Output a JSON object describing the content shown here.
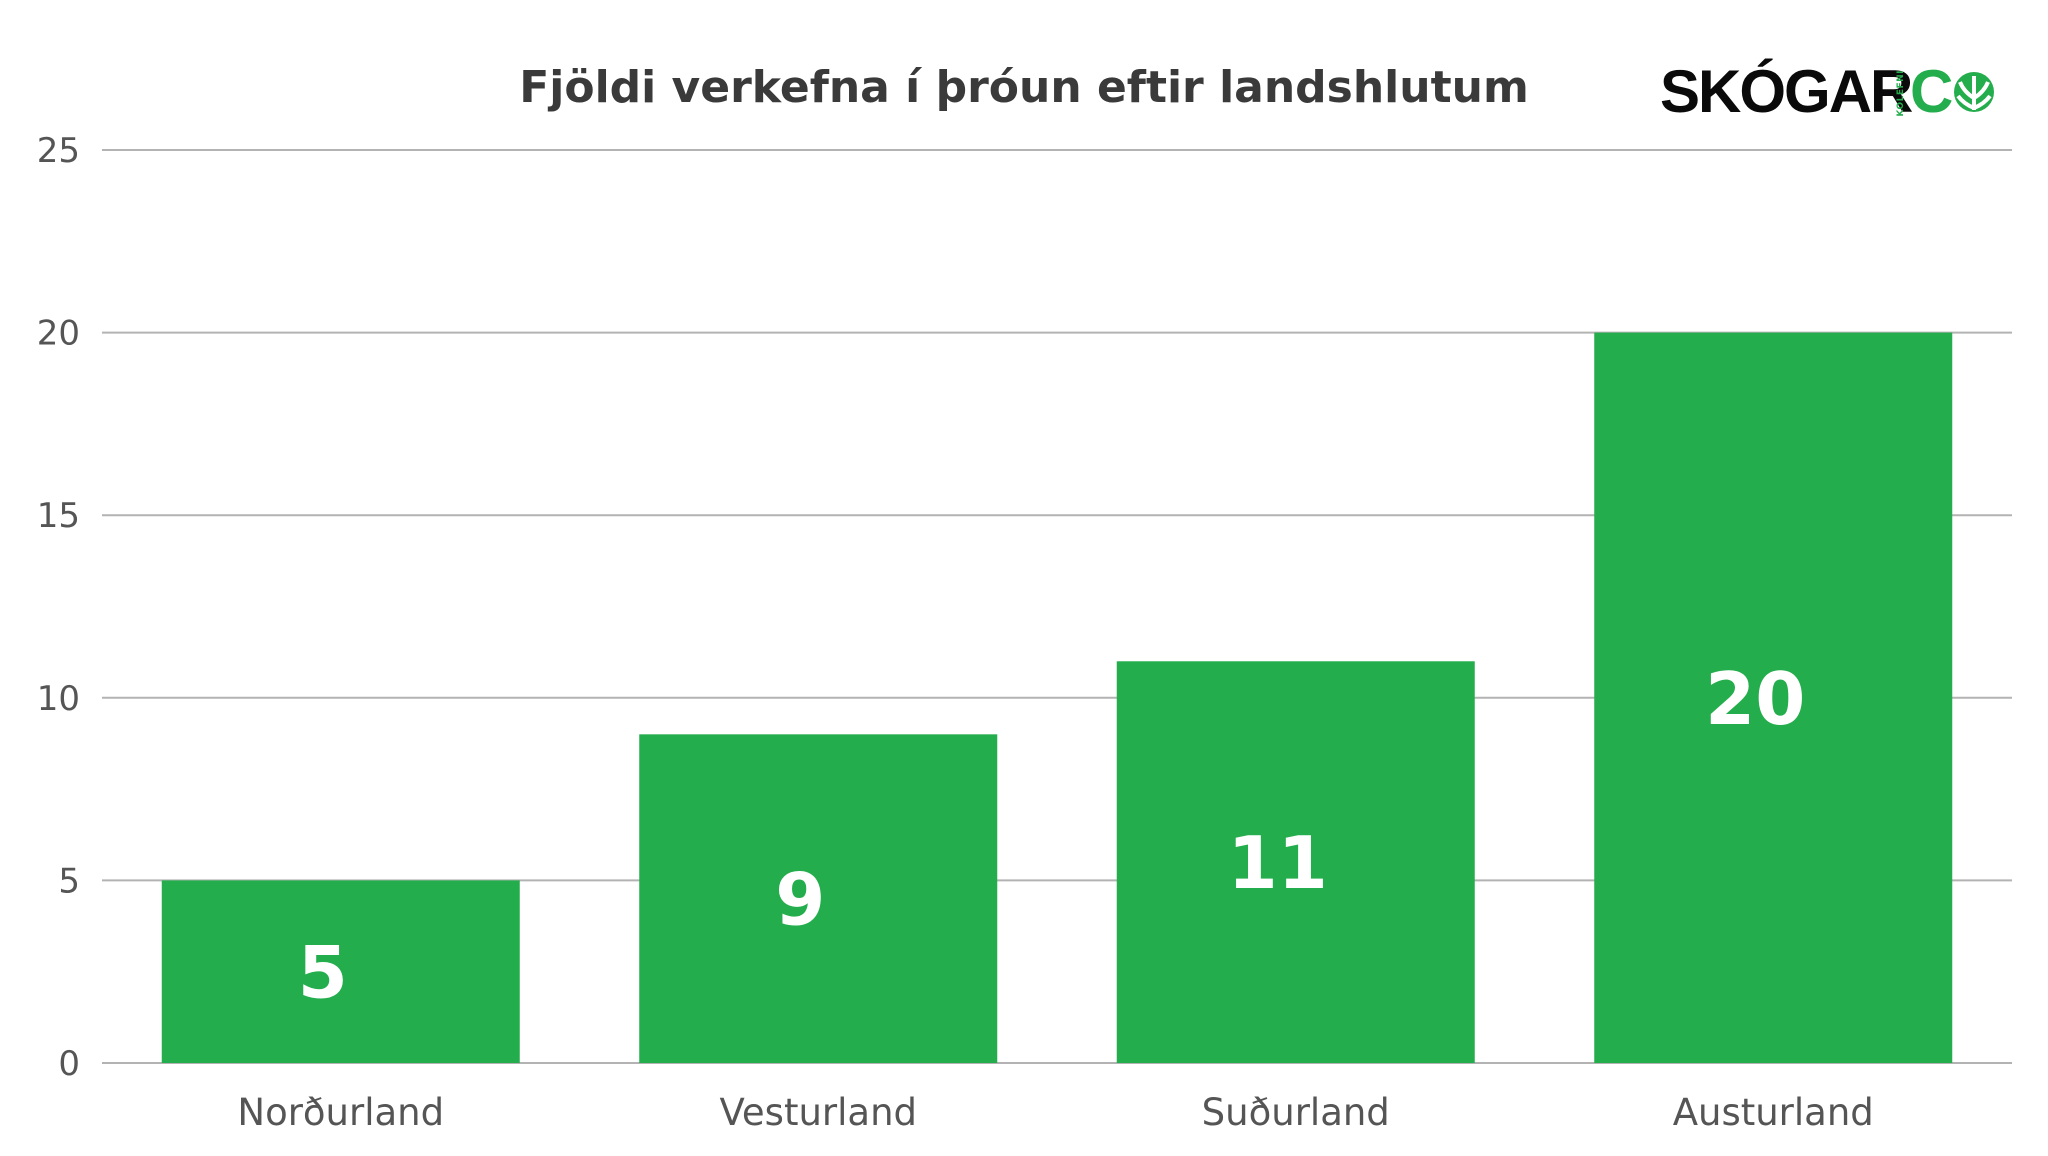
{
  "chart_data": {
    "type": "bar",
    "title": "Fjöldi verkefna í þróun eftir landshlutum",
    "categories": [
      "Norðurland",
      "Vesturland",
      "Suðurland",
      "Austurland"
    ],
    "values": [
      5,
      9,
      11,
      20
    ],
    "data_labels": [
      "5",
      "9",
      "11",
      "20"
    ],
    "yticks": [
      0,
      5,
      10,
      15,
      20,
      25
    ],
    "ylim": [
      0,
      25
    ],
    "xlabel": "",
    "ylabel": "",
    "grid": true,
    "legend": "none",
    "bar_color": "#24ad4c",
    "grid_color": "#b3b3b3"
  },
  "logo": {
    "word": "SKÓGAR",
    "sub": "KOLEFNI",
    "tail": "C",
    "leaf_icon": "leaf-o-icon",
    "accent_color": "#24ad4c"
  }
}
